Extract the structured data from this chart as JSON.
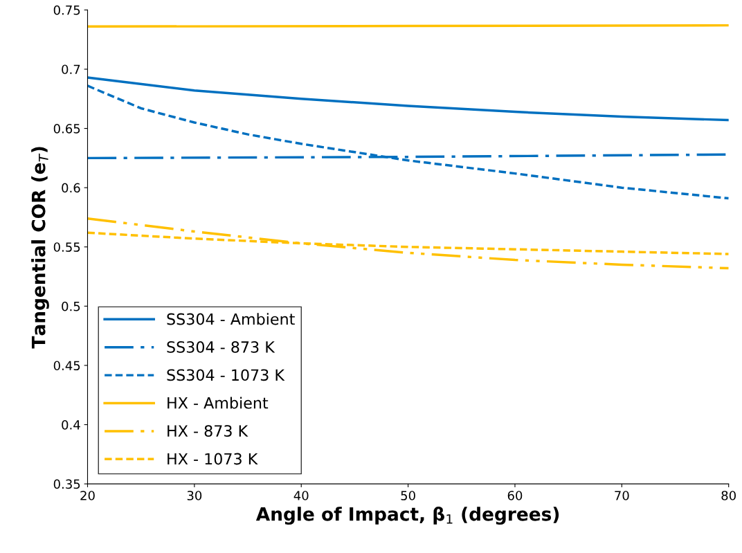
{
  "chart_data": {
    "type": "line",
    "xlabel": "Angle of Impact, β$_{1}$ (degrees)",
    "ylabel": "Tangential COR (e$_{T}$)",
    "xlim": [
      20,
      80
    ],
    "xticks": [
      20,
      30,
      40,
      50,
      60,
      70,
      80
    ],
    "ylim": [
      0.35,
      0.75
    ],
    "yticks": [
      0.35,
      0.4,
      0.45,
      0.5,
      0.55,
      0.6,
      0.65,
      0.7,
      0.75
    ],
    "grid": false,
    "legend": "bottom left",
    "marker": "none",
    "series": [
      {
        "name": "SS304 - Ambient",
        "color": "#0070c0",
        "line_style": "solid",
        "x": [
          20,
          30,
          40,
          50,
          60,
          70,
          80
        ],
        "values": [
          0.693,
          0.682,
          0.675,
          0.669,
          0.664,
          0.66,
          0.657
        ]
      },
      {
        "name": "SS304 - 873 K",
        "color": "#0070c0",
        "line_style": "dashdot",
        "x": [
          20,
          50,
          80
        ],
        "values": [
          0.625,
          0.626,
          0.628
        ]
      },
      {
        "name": "SS304 - 1073 K",
        "color": "#0070c0",
        "line_style": "dashed",
        "x": [
          20,
          25,
          30,
          35,
          40,
          45,
          50,
          60,
          70,
          80
        ],
        "values": [
          0.686,
          0.667,
          0.655,
          0.645,
          0.637,
          0.63,
          0.623,
          0.612,
          0.6,
          0.591
        ]
      },
      {
        "name": "HX - Ambient",
        "color": "#ffc000",
        "line_style": "solid",
        "x": [
          20,
          50,
          80
        ],
        "values": [
          0.736,
          0.7365,
          0.737
        ]
      },
      {
        "name": "HX - 873 K",
        "color": "#ffc000",
        "line_style": "dashdotdot",
        "x": [
          20,
          30,
          40,
          50,
          60,
          70,
          80
        ],
        "values": [
          0.574,
          0.563,
          0.553,
          0.545,
          0.539,
          0.535,
          0.532
        ]
      },
      {
        "name": "HX - 1073 K",
        "color": "#ffc000",
        "line_style": "dashed",
        "x": [
          20,
          30,
          40,
          50,
          60,
          70,
          80
        ],
        "values": [
          0.562,
          0.557,
          0.553,
          0.55,
          0.548,
          0.546,
          0.544
        ]
      }
    ]
  }
}
